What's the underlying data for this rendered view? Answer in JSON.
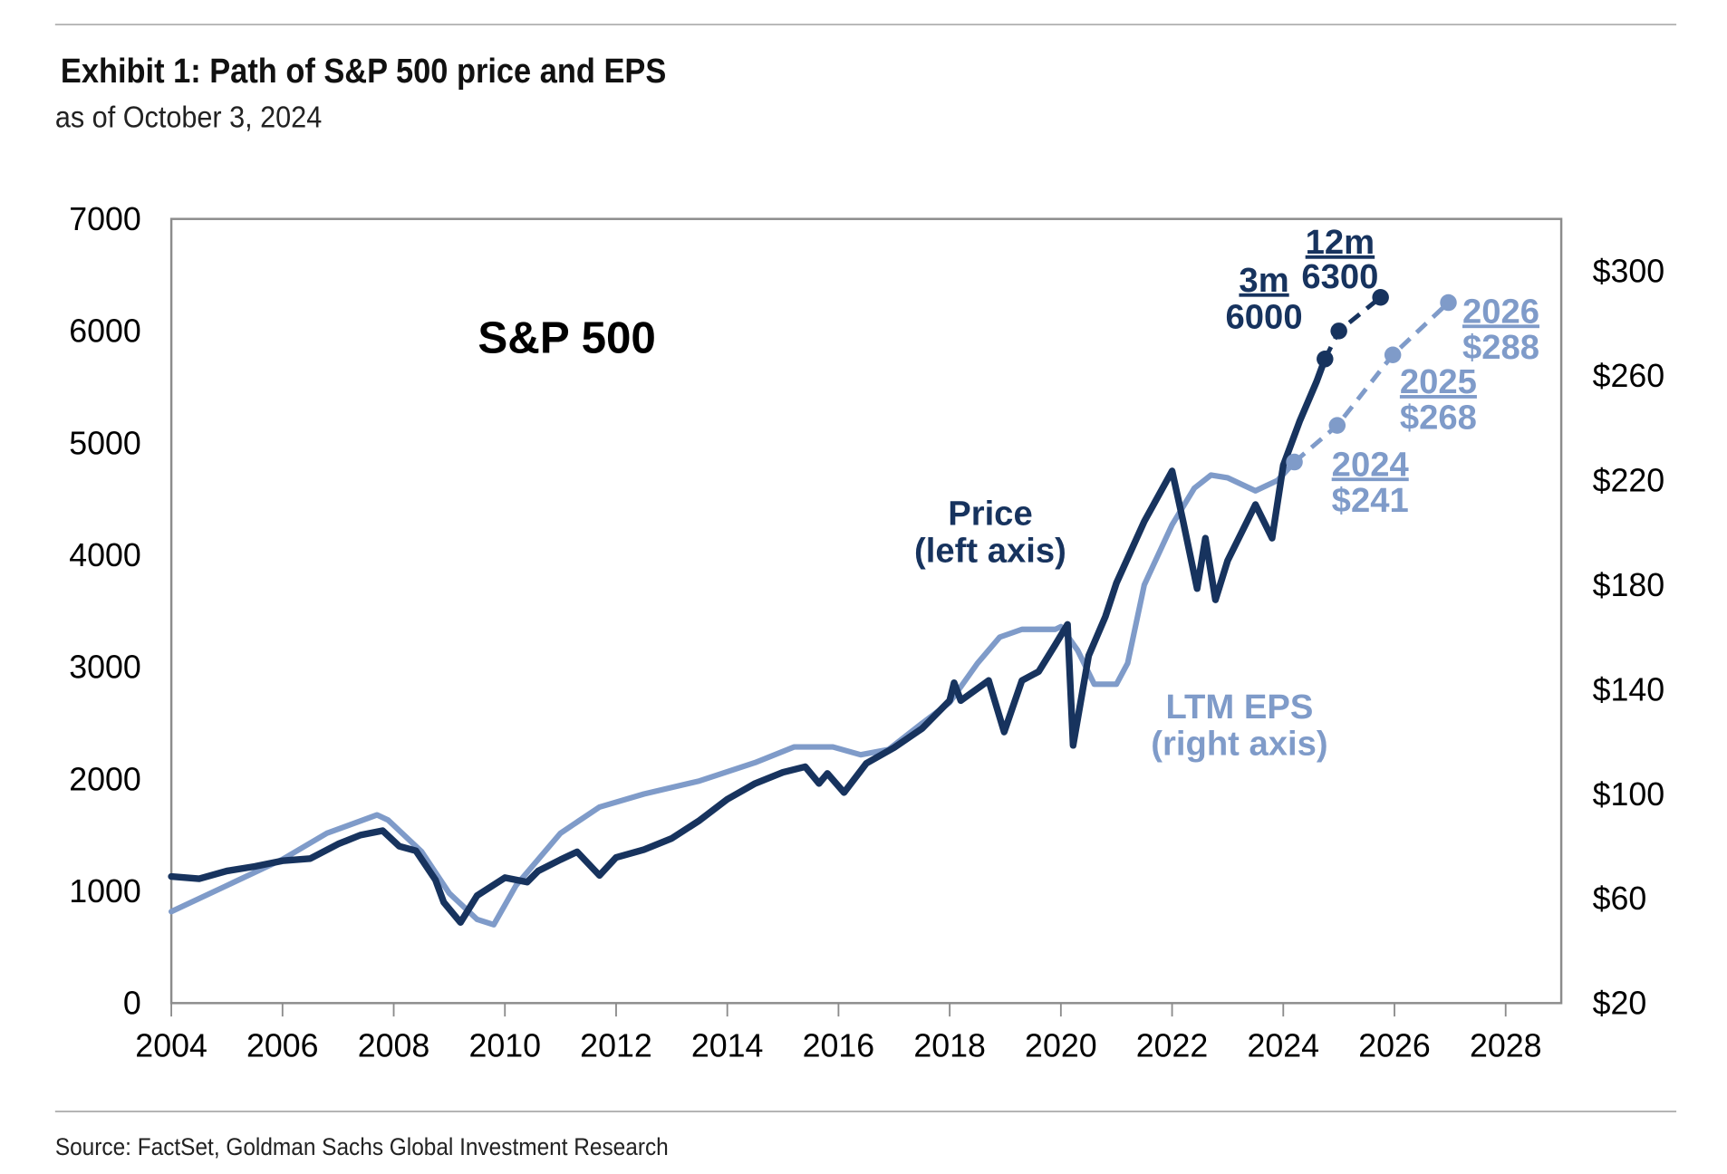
{
  "header": {
    "title": "Exhibit 1: Path of S&P 500 price and EPS",
    "subtitle": "as of October 3, 2024"
  },
  "footer": {
    "source": "Source: FactSet, Goldman Sachs Global Investment Research"
  },
  "colors": {
    "price": "#17335e",
    "eps": "#7f9bc9",
    "axis": "#8c8c8c",
    "rule": "#b0b0b0"
  },
  "chart_data": {
    "type": "line",
    "title": "S&P 500",
    "x_range": [
      2004,
      2029
    ],
    "x_ticks": [
      "2004",
      "2006",
      "2008",
      "2010",
      "2012",
      "2014",
      "2016",
      "2018",
      "2020",
      "2022",
      "2024",
      "2026",
      "2028"
    ],
    "y_left": {
      "range": [
        0,
        7000
      ],
      "ticks": [
        "0",
        "1000",
        "2000",
        "3000",
        "4000",
        "5000",
        "6000",
        "7000"
      ]
    },
    "y_right": {
      "range": [
        20,
        320
      ],
      "ticks": [
        "$20",
        "$60",
        "$100",
        "$140",
        "$180",
        "$220",
        "$260",
        "$300"
      ],
      "tick_values": [
        20,
        60,
        100,
        140,
        180,
        220,
        260,
        300
      ]
    },
    "grid": false,
    "series": [
      {
        "name": "Price",
        "label_line1": "Price",
        "label_line2": "(left axis)",
        "axis": "left",
        "x": [
          2004,
          2004.5,
          2005,
          2005.5,
          2006,
          2006.5,
          2007,
          2007.4,
          2007.8,
          2008.1,
          2008.4,
          2008.75,
          2008.9,
          2009.2,
          2009.5,
          2010,
          2010.4,
          2010.6,
          2011,
          2011.3,
          2011.7,
          2012,
          2012.5,
          2013,
          2013.5,
          2014,
          2014.5,
          2015,
          2015.4,
          2015.65,
          2015.8,
          2016.1,
          2016.5,
          2017,
          2017.5,
          2018,
          2018.08,
          2018.2,
          2018.7,
          2018.98,
          2019.3,
          2019.6,
          2019.9,
          2020.12,
          2020.22,
          2020.5,
          2020.8,
          2021,
          2021.5,
          2022,
          2022.2,
          2022.45,
          2022.6,
          2022.78,
          2023,
          2023.5,
          2023.8,
          2024,
          2024.3,
          2024.6,
          2024.75
        ],
        "y": [
          1130,
          1110,
          1180,
          1220,
          1270,
          1290,
          1420,
          1500,
          1540,
          1400,
          1360,
          1100,
          900,
          720,
          960,
          1120,
          1080,
          1180,
          1280,
          1350,
          1140,
          1300,
          1370,
          1470,
          1630,
          1820,
          1960,
          2060,
          2110,
          1960,
          2050,
          1880,
          2140,
          2280,
          2450,
          2700,
          2860,
          2700,
          2880,
          2420,
          2880,
          2960,
          3200,
          3380,
          2300,
          3100,
          3450,
          3750,
          4300,
          4750,
          4300,
          3700,
          4150,
          3600,
          3950,
          4450,
          4150,
          4800,
          5200,
          5550,
          5750
        ]
      },
      {
        "name": "LTM EPS",
        "label_line1": "LTM EPS",
        "label_line2": "(right axis)",
        "axis": "right",
        "x": [
          2004,
          2005,
          2006,
          2006.8,
          2007.7,
          2007.9,
          2008.5,
          2009.0,
          2009.5,
          2009.8,
          2010.2,
          2011,
          2011.7,
          2012.5,
          2013.5,
          2014.5,
          2015.2,
          2015.9,
          2016.4,
          2016.9,
          2017.5,
          2018.0,
          2018.5,
          2018.9,
          2019.3,
          2019.9,
          2020.0,
          2020.3,
          2020.6,
          2021.0,
          2021.2,
          2021.5,
          2022.0,
          2022.4,
          2022.7,
          2023.0,
          2023.5,
          2023.9,
          2024.2
        ],
        "y": [
          55,
          65,
          75,
          85,
          92,
          90,
          78,
          62,
          52,
          50,
          65,
          85,
          95,
          100,
          105,
          112,
          118,
          118,
          115,
          117,
          127,
          135,
          150,
          160,
          163,
          163,
          164,
          155,
          142,
          142,
          150,
          180,
          203,
          217,
          222,
          221,
          216,
          220,
          227
        ]
      }
    ],
    "projections": [
      {
        "series": "Price",
        "axis": "left",
        "x": [
          2024.75,
          2025.0,
          2025.75
        ],
        "y": [
          5750,
          6000,
          6300
        ],
        "labels": [
          {
            "head": "3m",
            "value": "6000"
          },
          {
            "head": "12m",
            "value": "6300"
          }
        ]
      },
      {
        "series": "LTM EPS",
        "axis": "right",
        "x": [
          2024.2,
          2024.97,
          2025.97,
          2026.97
        ],
        "y": [
          227,
          241,
          268,
          288
        ],
        "labels": [
          {
            "head": "2024",
            "value": "$241"
          },
          {
            "head": "2025",
            "value": "$268"
          },
          {
            "head": "2026",
            "value": "$288"
          }
        ]
      }
    ]
  }
}
